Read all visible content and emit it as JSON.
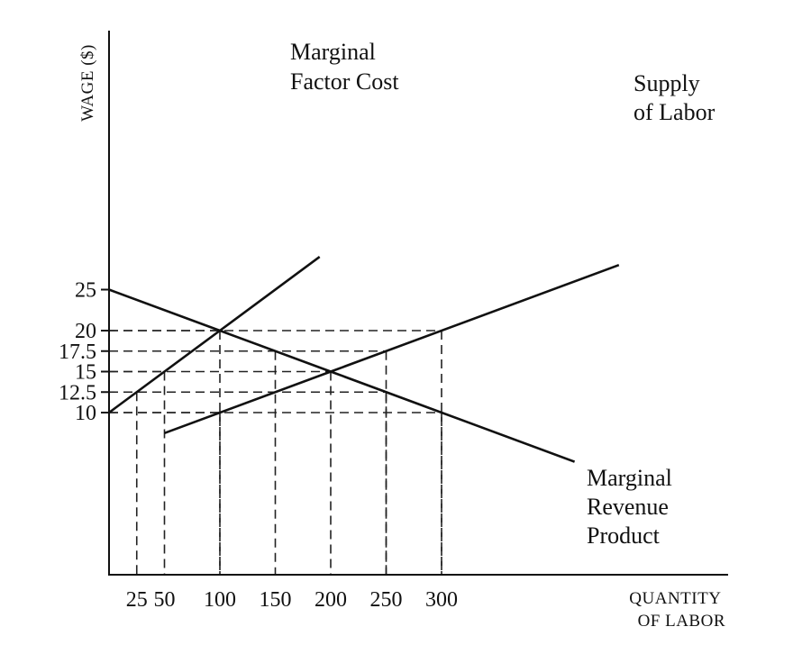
{
  "chart_data": {
    "type": "line",
    "title": "",
    "xlabel": [
      "QUANTITY",
      "OF LABOR"
    ],
    "ylabel": "WAGE ($)",
    "x_ticks": [
      25,
      50,
      100,
      150,
      200,
      250,
      300
    ],
    "y_ticks": [
      "10",
      "12.5",
      "15",
      "17.5",
      "20",
      "25"
    ],
    "series": [
      {
        "name": [
          "Marginal",
          "Factor Cost"
        ],
        "x": [
          0,
          100,
          190
        ],
        "y": [
          10,
          20,
          29
        ]
      },
      {
        "name": [
          "Supply",
          "of Labor"
        ],
        "x": [
          50,
          200,
          460
        ],
        "y": [
          7.5,
          15,
          28
        ]
      },
      {
        "name": [
          "Marginal",
          "Revenue",
          "Product"
        ],
        "x": [
          0,
          100,
          200,
          300,
          420
        ],
        "y": [
          25,
          20,
          15,
          10,
          4
        ]
      }
    ],
    "guides": [
      {
        "x": 100,
        "y": 20
      },
      {
        "x": 300,
        "y": 20
      },
      {
        "x": 150,
        "y": 17.5
      },
      {
        "x": 250,
        "y": 17.5
      },
      {
        "x": 50,
        "y": 15
      },
      {
        "x": 200,
        "y": 15
      },
      {
        "x": 25,
        "y": 12.5
      },
      {
        "x": 250,
        "y": 12.5
      },
      {
        "x": 100,
        "y": 10
      },
      {
        "x": 300,
        "y": 10
      }
    ]
  }
}
